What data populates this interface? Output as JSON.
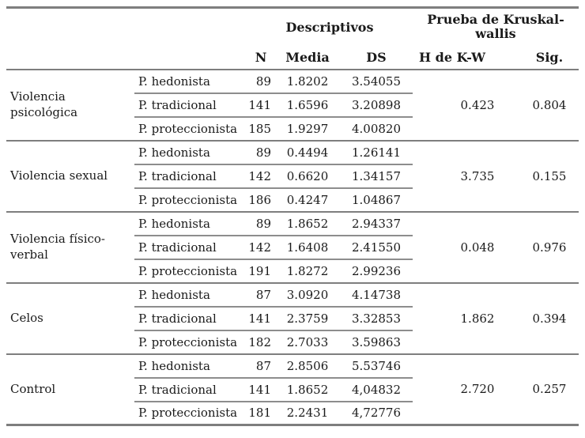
{
  "table": {
    "header": {
      "descriptivos_label": "Descriptivos",
      "kruskal_label": "Prueba de Kruskal-wallis",
      "columns": {
        "n": "N",
        "media": "Media",
        "ds": "DS",
        "h": "H de K-W",
        "sig": "Sig."
      }
    },
    "line_color": "#7e7e7e",
    "groups": [
      {
        "name": "Violencia psicológica",
        "rows": [
          {
            "label": "P. hedonista",
            "n": "89",
            "media": "1.8202",
            "ds": "3.54055"
          },
          {
            "label": "P. tradicional",
            "n": "141",
            "media": "1.6596",
            "ds": "3.20898"
          },
          {
            "label": "P. proteccionista",
            "n": "185",
            "media": "1.9297",
            "ds": "4.00820"
          }
        ],
        "h": "0.423",
        "sig": "0.804"
      },
      {
        "name": "Violencia sexual",
        "rows": [
          {
            "label": "P. hedonista",
            "n": "89",
            "media": "0.4494",
            "ds": "1.26141"
          },
          {
            "label": "P. tradicional",
            "n": "142",
            "media": "0.6620",
            "ds": "1.34157"
          },
          {
            "label": "P. proteccionista",
            "n": "186",
            "media": "0.4247",
            "ds": "1.04867"
          }
        ],
        "h": "3.735",
        "sig": "0.155"
      },
      {
        "name": "Violencia físico-verbal",
        "rows": [
          {
            "label": "P. hedonista",
            "n": "89",
            "media": "1.8652",
            "ds": "2.94337"
          },
          {
            "label": "P. tradicional",
            "n": "142",
            "media": "1.6408",
            "ds": "2.41550"
          },
          {
            "label": "P. proteccionista",
            "n": "191",
            "media": "1.8272",
            "ds": "2.99236"
          }
        ],
        "h": "0.048",
        "sig": "0.976"
      },
      {
        "name": "Celos",
        "rows": [
          {
            "label": "P. hedonista",
            "n": "87",
            "media": "3.0920",
            "ds": "4.14738"
          },
          {
            "label": "P. tradicional",
            "n": "141",
            "media": "2.3759",
            "ds": "3.32853"
          },
          {
            "label": "P. proteccionista",
            "n": "182",
            "media": "2.7033",
            "ds": "3.59863"
          }
        ],
        "h": "1.862",
        "sig": "0.394"
      },
      {
        "name": "Control",
        "rows": [
          {
            "label": "P. hedonista",
            "n": "87",
            "media": "2.8506",
            "ds": "5.53746"
          },
          {
            "label": "P. tradicional",
            "n": "141",
            "media": "1.8652",
            "ds": "4,04832"
          },
          {
            "label": "P. proteccionista",
            "n": "181",
            "media": "2.2431",
            "ds": "4,72776"
          }
        ],
        "h": "2.720",
        "sig": "0.257"
      }
    ]
  }
}
